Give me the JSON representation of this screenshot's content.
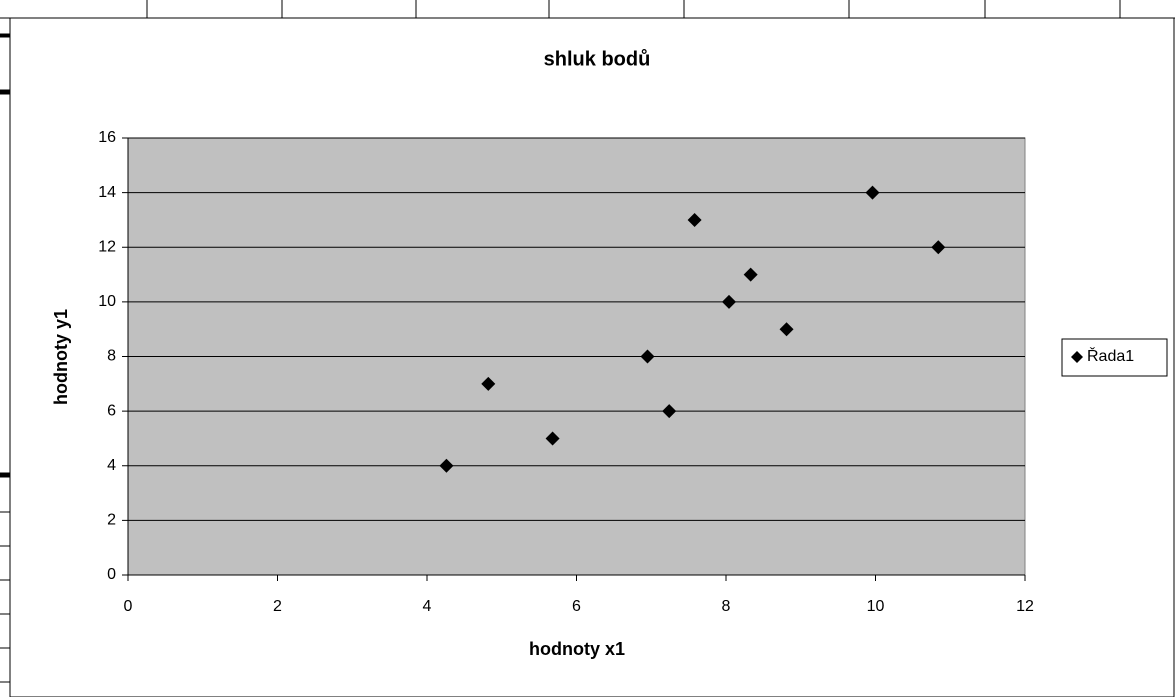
{
  "chart_data": {
    "type": "scatter",
    "title": "shluk bodů",
    "x_label": "hodnoty x1",
    "y_label": "hodnoty y1",
    "series": [
      {
        "name": "Řada1",
        "color": "#000000",
        "x": [
          8.04,
          6.95,
          7.58,
          8.81,
          8.33,
          9.96,
          7.24,
          4.26,
          10.84,
          4.82,
          5.68
        ],
        "values": [
          10,
          8,
          13,
          9,
          11,
          14,
          6,
          4,
          12,
          7,
          5
        ]
      }
    ],
    "xlim": [
      0,
      12
    ],
    "xticks": [
      0,
      2,
      4,
      6,
      8,
      10,
      12
    ],
    "ylim": [
      0,
      16
    ],
    "yticks": [
      0,
      2,
      4,
      6,
      8,
      10,
      12,
      14,
      16
    ],
    "grid": true,
    "legend": "right",
    "plot_background": "#c0c0c0"
  }
}
